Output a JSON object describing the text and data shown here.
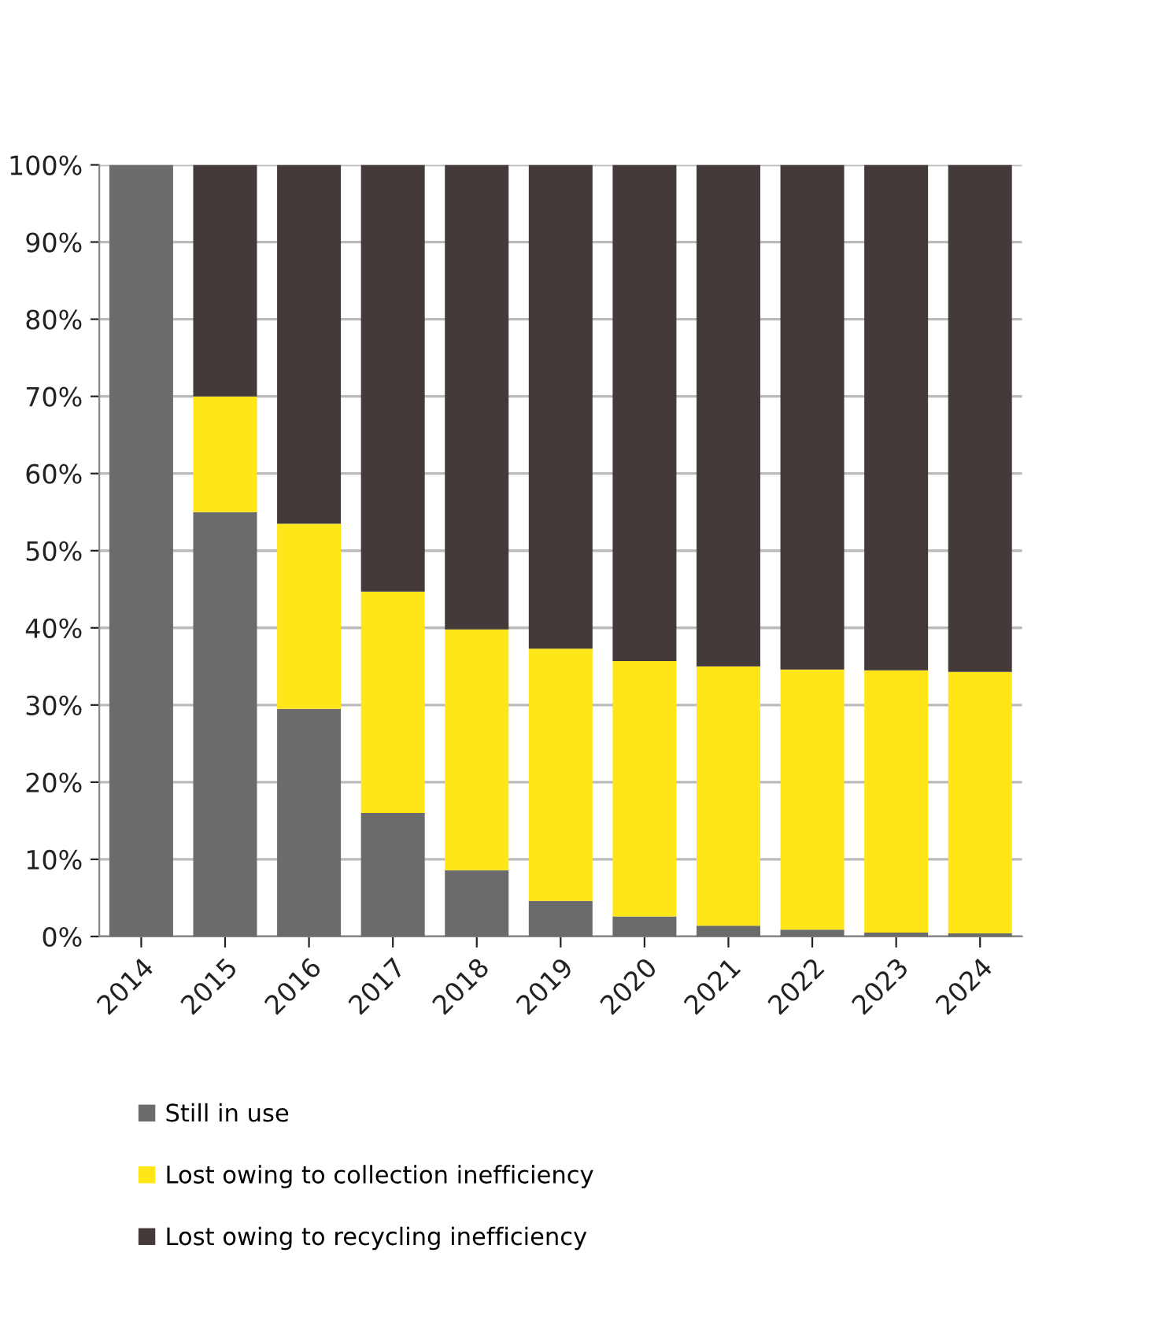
{
  "chart_data": {
    "type": "bar",
    "stacked": true,
    "categories": [
      "2014",
      "2015",
      "2016",
      "2017",
      "2018",
      "2019",
      "2020",
      "2021",
      "2022",
      "2023",
      "2024"
    ],
    "series": [
      {
        "name": "Still in use",
        "color": "#6b6b6b",
        "values": [
          100,
          55.0,
          29.5,
          16.0,
          8.6,
          4.6,
          2.6,
          1.4,
          0.9,
          0.5,
          0.4
        ]
      },
      {
        "name": "Lost owing to collection inefficiency",
        "color": "#ffe619",
        "values": [
          0,
          15.0,
          24.0,
          28.7,
          31.2,
          32.7,
          33.1,
          33.6,
          33.7,
          34.0,
          33.9
        ]
      },
      {
        "name": "Lost owing to recycling inefficiency",
        "color": "#433a39",
        "values": [
          0,
          30.0,
          46.5,
          55.3,
          60.2,
          62.7,
          64.3,
          65.0,
          65.4,
          65.5,
          65.7
        ]
      }
    ],
    "ylim": [
      0,
      100
    ],
    "yticks": [
      {
        "value": 0,
        "label": "0%"
      },
      {
        "value": 10,
        "label": "10%"
      },
      {
        "value": 20,
        "label": "20%"
      },
      {
        "value": 30,
        "label": "30%"
      },
      {
        "value": 40,
        "label": "40%"
      },
      {
        "value": 50,
        "label": "50%"
      },
      {
        "value": 60,
        "label": "60%"
      },
      {
        "value": 70,
        "label": "70%"
      },
      {
        "value": 80,
        "label": "80%"
      },
      {
        "value": 90,
        "label": "90%"
      },
      {
        "value": 100,
        "label": "100%"
      }
    ],
    "grid": "y",
    "legend": "bottom"
  }
}
